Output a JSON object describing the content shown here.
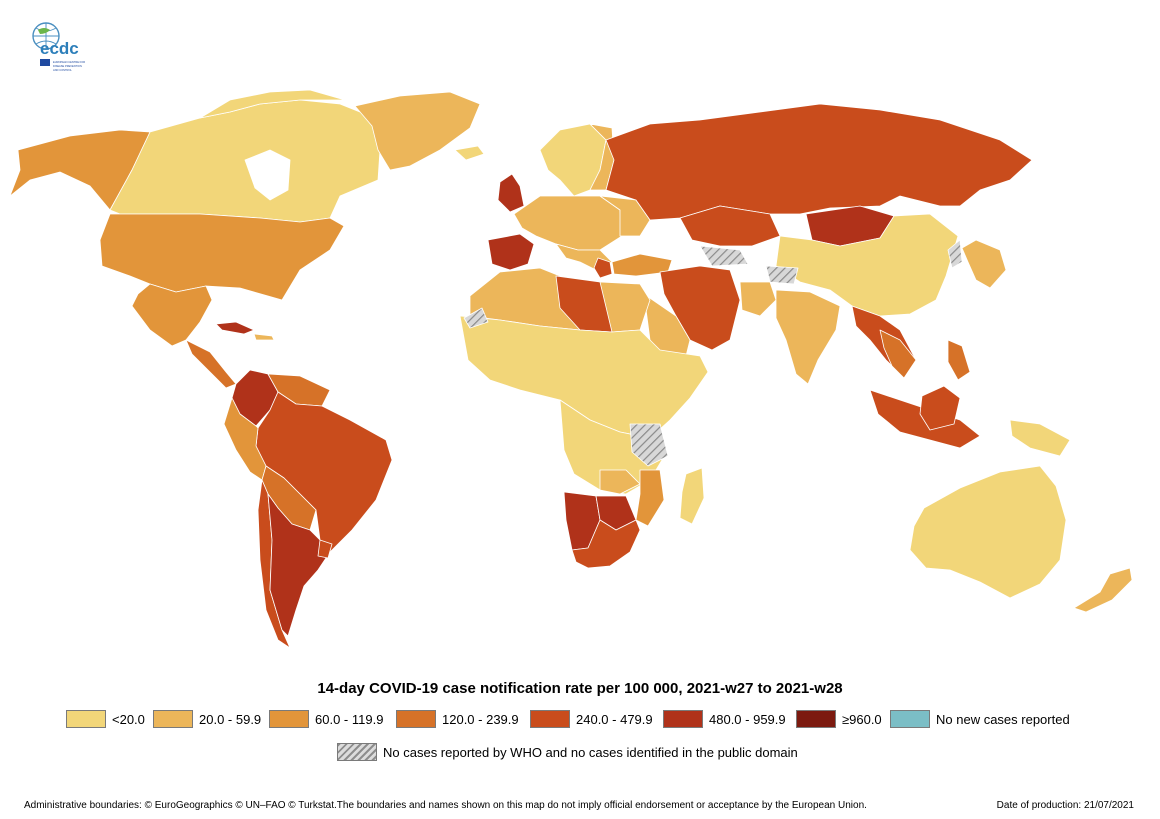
{
  "header": {
    "logo_text": "ecdc",
    "logo_subtext": "EUROPEAN CENTRE FOR DISEASE PREVENTION AND CONTROL"
  },
  "map": {
    "title": "14-day COVID-19 case notification rate per 100 000, 2021-w27 to 2021-w28",
    "colors": {
      "ocean": "#ffffff",
      "border": "#ffffff",
      "lt20": "#f2d679",
      "20_59": "#ecb65a",
      "60_119": "#e2953a",
      "120_239": "#d67228",
      "240_479": "#c94c1c",
      "480_959": "#b0321a",
      "ge960": "#7c1a0f",
      "no_new_cases": "#7bbec6"
    },
    "legend": [
      {
        "label": "<20.0",
        "color": "#f2d679"
      },
      {
        "label": "20.0 - 59.9",
        "color": "#ecb65a"
      },
      {
        "label": "60.0 - 119.9",
        "color": "#e2953a"
      },
      {
        "label": "120.0 - 239.9",
        "color": "#d67228"
      },
      {
        "label": "240.0 - 479.9",
        "color": "#c94c1c"
      },
      {
        "label": "480.0 - 959.9",
        "color": "#b0321a"
      },
      {
        "label": "≥960.0",
        "color": "#7c1a0f"
      },
      {
        "label": "No new cases reported",
        "color": "#7bbec6"
      }
    ],
    "no_data_label": "No cases reported by WHO and no cases identified in the public domain"
  },
  "footer": {
    "disclaimer": "Administrative boundaries: © EuroGeographics © UN–FAO © Turkstat.The boundaries and names shown on this map do not imply official endorsement or acceptance by the European Union.",
    "production_date": "Date of production: 21/07/2021"
  }
}
